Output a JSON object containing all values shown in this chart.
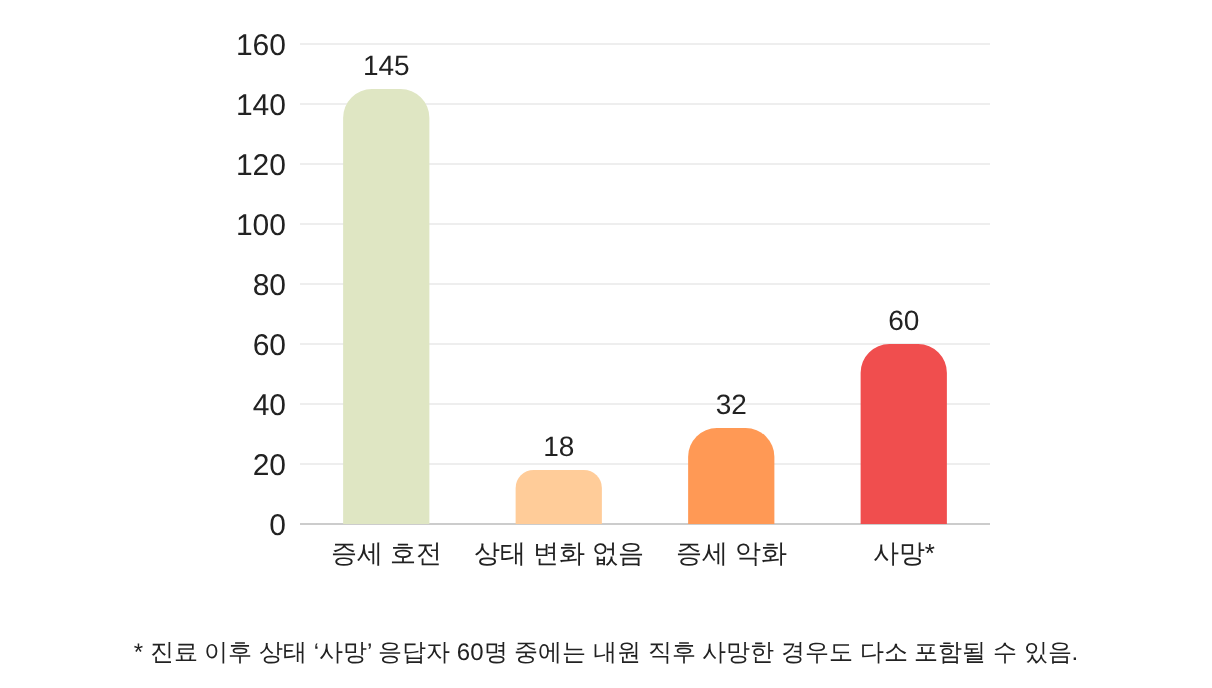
{
  "chart_data": {
    "type": "bar",
    "categories": [
      "증세 호전",
      "상태 변화 없음",
      "증세 악화",
      "사망*"
    ],
    "values": [
      145,
      18,
      32,
      60
    ],
    "colors": [
      "#dfe6c3",
      "#ffcc99",
      "#ff9955",
      "#f04e4e"
    ],
    "ylim": [
      0,
      160
    ],
    "yticks": [
      0,
      20,
      40,
      60,
      80,
      100,
      120,
      140,
      160
    ],
    "grid": "y",
    "data_labels": true,
    "annotations": [
      "* 진료 이후 상태 ‘사망’ 응답자 60명 중에는 내원 직후 사망한 경우도 다소 포함될 수 있음."
    ]
  }
}
